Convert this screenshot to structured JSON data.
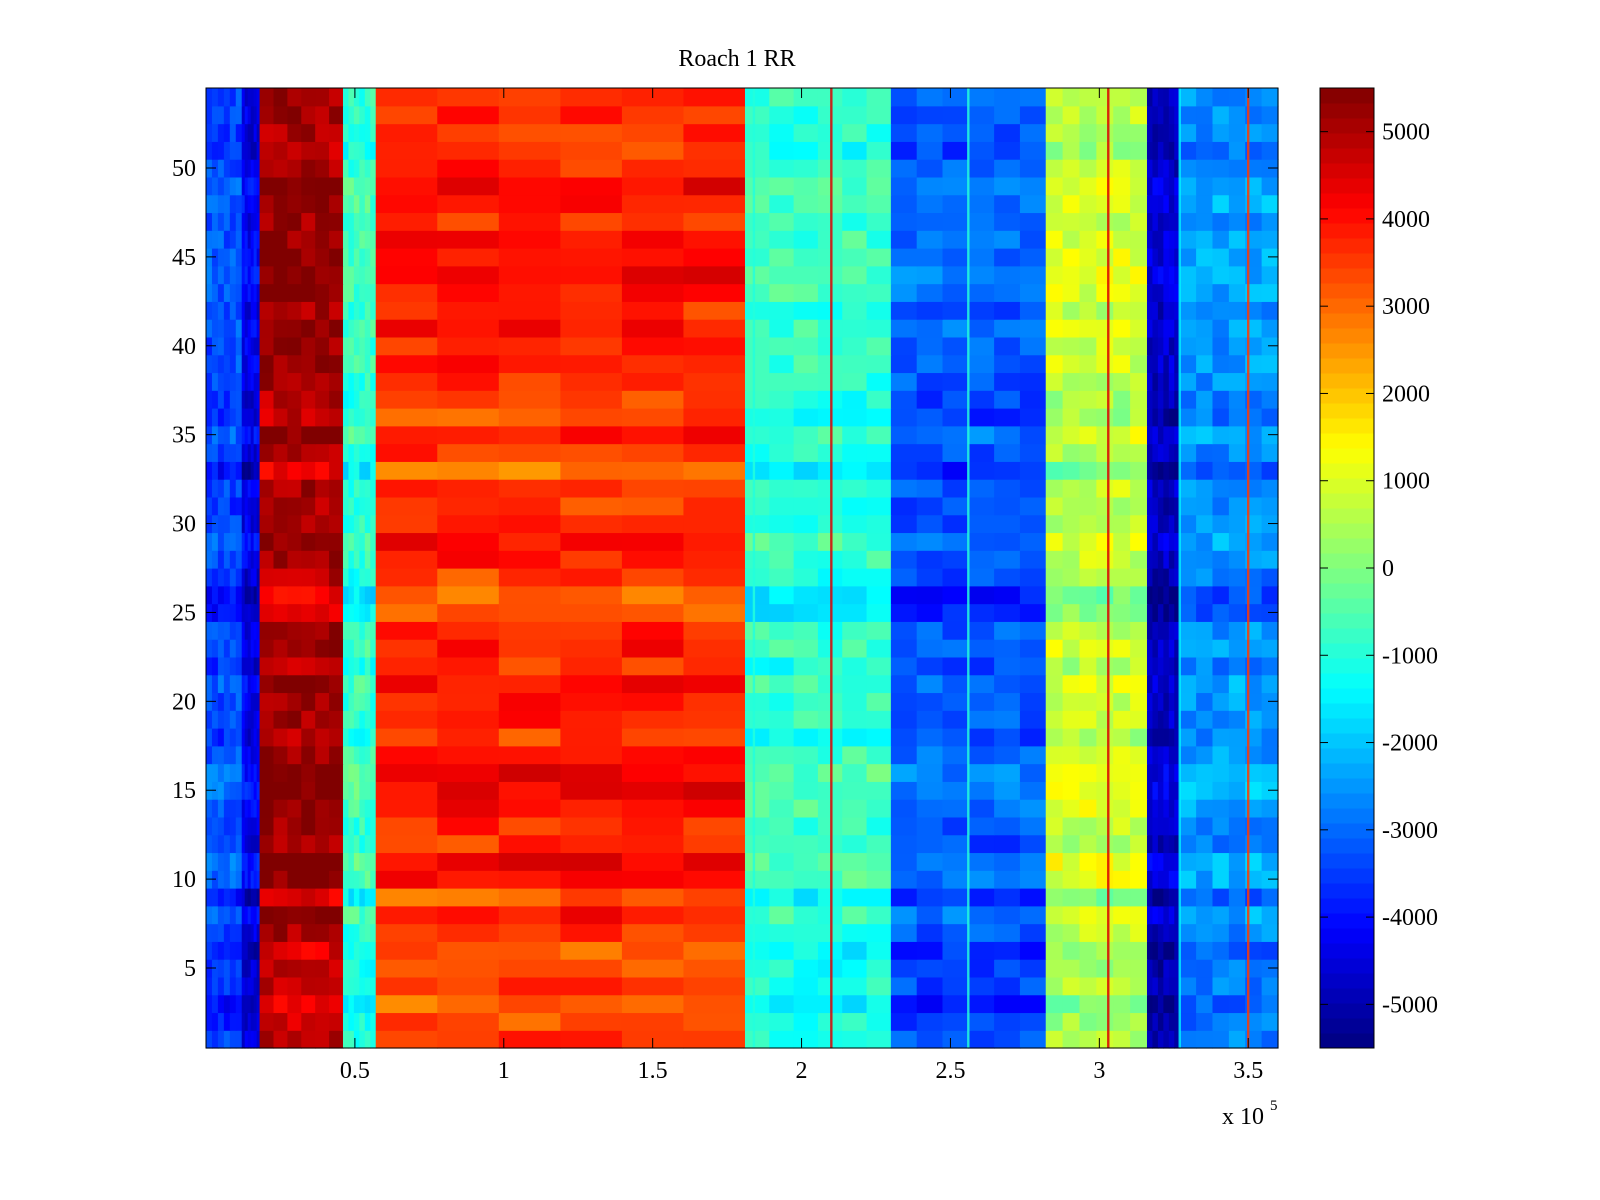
{
  "chart_data": {
    "type": "heatmap",
    "title": "Roach 1 RR",
    "xlabel": "",
    "ylabel": "",
    "x_multiplier_label": "x 10",
    "x_multiplier_exponent": "5",
    "xlim": [
      0,
      3.6
    ],
    "ylim": [
      0.5,
      54.5
    ],
    "x_ticks": [
      0.5,
      1,
      1.5,
      2,
      2.5,
      3,
      3.5
    ],
    "x_tick_labels": [
      "0.5",
      "1",
      "1.5",
      "2",
      "2.5",
      "3",
      "3.5"
    ],
    "y_ticks": [
      5,
      10,
      15,
      20,
      25,
      30,
      35,
      40,
      45,
      50
    ],
    "y_tick_labels": [
      "5",
      "10",
      "15",
      "20",
      "25",
      "30",
      "35",
      "40",
      "45",
      "50"
    ],
    "rows": 54,
    "colorbar": {
      "clim": [
        -5500,
        5500
      ],
      "ticks": [
        5000,
        4000,
        3000,
        2000,
        1000,
        0,
        -1000,
        -2000,
        -3000,
        -4000,
        -5000
      ],
      "tick_labels": [
        "5000",
        "4000",
        "3000",
        "2000",
        "1000",
        "0",
        "-1000",
        "-2000",
        "-3000",
        "-4000",
        "-5000"
      ],
      "colormap": "jet"
    },
    "column_bands": [
      {
        "x_start": 0.0,
        "x_end": 0.12,
        "value": -3800
      },
      {
        "x_start": 0.12,
        "x_end": 0.18,
        "value": -4800
      },
      {
        "x_start": 0.18,
        "x_end": 0.46,
        "value": 4600
      },
      {
        "x_start": 0.46,
        "x_end": 0.57,
        "value": -1300
      },
      {
        "x_start": 0.57,
        "x_end": 1.81,
        "value": 3200
      },
      {
        "x_start": 1.81,
        "x_end": 2.3,
        "value": -1300
      },
      {
        "x_start": 2.3,
        "x_end": 2.82,
        "value": -3600
      },
      {
        "x_start": 2.82,
        "x_end": 3.16,
        "value": 200
      },
      {
        "x_start": 3.16,
        "x_end": 3.27,
        "value": -5200
      },
      {
        "x_start": 3.27,
        "x_end": 3.6,
        "value": -3000
      }
    ],
    "row_offsets": [
      600,
      200,
      -400,
      500,
      300,
      -200,
      800,
      1400,
      -200,
      1500,
      1700,
      600,
      900,
      1400,
      1800,
      1700,
      1200,
      400,
      900,
      1000,
      1400,
      400,
      1200,
      900,
      -300,
      -600,
      400,
      1000,
      1400,
      800,
      500,
      900,
      -500,
      700,
      1400,
      200,
      400,
      800,
      1100,
      900,
      1200,
      700,
      1300,
      1600,
      1400,
      1200,
      800,
      1500,
      1600,
      900,
      300,
      600,
      800,
      900
    ],
    "vertical_streaks": [
      {
        "x": 2.1,
        "value": 4500
      },
      {
        "x": 3.03,
        "value": 4500
      },
      {
        "x": 3.5,
        "value": 3500
      },
      {
        "x": 1.84,
        "value": -1000
      },
      {
        "x": 2.56,
        "value": -1000
      },
      {
        "x": 3.27,
        "value": -1500
      }
    ]
  }
}
